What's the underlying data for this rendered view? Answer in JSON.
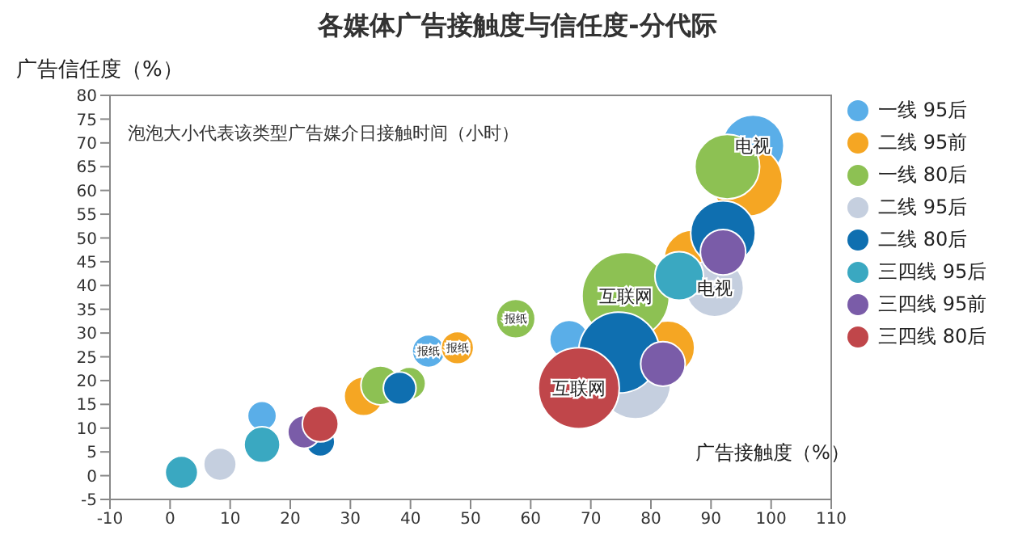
{
  "chart_data": {
    "type": "bubble",
    "title": "各媒体广告接触度与信任度-分代际",
    "xlabel": "广告接触度（%）",
    "ylabel": "广告信任度（%）",
    "xlim": [
      -10,
      110
    ],
    "xticks": [
      -10,
      0,
      10,
      20,
      30,
      40,
      50,
      60,
      70,
      80,
      90,
      100,
      110
    ],
    "ylim": [
      -5,
      80
    ],
    "yticks": [
      -5,
      0,
      5,
      10,
      15,
      20,
      25,
      30,
      35,
      40,
      45,
      50,
      55,
      60,
      65,
      70,
      75,
      80
    ],
    "legend": "right",
    "series": [
      {
        "name": "一线 95后",
        "color": "#5aaee8",
        "x": [
          97,
          66.4,
          43,
          15.3
        ],
        "values": [
          69.4,
          28.6,
          26.2,
          12.6
        ],
        "sizes": [
          0.5,
          0.2,
          0.14,
          0.11
        ]
      },
      {
        "name": "二线 95前",
        "color": "#f5a623",
        "x": [
          96,
          87,
          82.8,
          47.8,
          32.2
        ],
        "values": [
          62,
          45.6,
          26.9,
          26.9,
          16.7
        ],
        "sizes": [
          0.66,
          0.44,
          0.38,
          0.14,
          0.2
        ]
      },
      {
        "name": "一线 80后",
        "color": "#8dc153",
        "x": [
          92.7,
          75.8,
          57.5,
          35,
          39.8
        ],
        "values": [
          65,
          37.8,
          33,
          19,
          19.4
        ],
        "sizes": [
          0.55,
          1,
          0.2,
          0.2,
          0.14
        ]
      },
      {
        "name": "二线 95后",
        "color": "#c5cfdf",
        "x": [
          90.6,
          77.4,
          8.3
        ],
        "values": [
          39.5,
          19.4,
          2.4
        ],
        "sizes": [
          0.44,
          0.66,
          0.14
        ]
      },
      {
        "name": "二线 80后",
        "color": "#0f6fb0",
        "x": [
          92,
          74.7,
          38.2,
          25
        ],
        "values": [
          51,
          25.9,
          18.4,
          7.1
        ],
        "sizes": [
          0.55,
          0.86,
          0.14,
          0.11
        ]
      },
      {
        "name": "三四线 95后",
        "color": "#3aa8c1",
        "x": [
          84.7,
          1.9,
          15.3
        ],
        "values": [
          42,
          0.7,
          6.5
        ],
        "sizes": [
          0.31,
          0.14,
          0.17
        ]
      },
      {
        "name": "三四线 95前",
        "color": "#7a5ca8",
        "x": [
          92,
          82,
          22.3
        ],
        "values": [
          47,
          23.5,
          9.2
        ],
        "sizes": [
          0.27,
          0.26,
          0.14
        ]
      },
      {
        "name": "三四线 80后",
        "color": "#c0464a",
        "x": [
          68,
          25
        ],
        "values": [
          18.4,
          10.9
        ],
        "sizes": [
          0.86,
          0.17
        ]
      }
    ],
    "annotations": [
      "泡泡大小代表该类型广告媒介日接触时间（小时）",
      {
        "text": "电视",
        "x": 97,
        "y": 69.4
      },
      {
        "text": "电视",
        "x": 90.6,
        "y": 39.5
      },
      {
        "text": "互联网",
        "x": 75.8,
        "y": 37.8
      },
      {
        "text": "互联网",
        "x": 68,
        "y": 18.4
      },
      {
        "text": "报纸",
        "x": 57.5,
        "y": 33
      },
      {
        "text": "报纸",
        "x": 47.8,
        "y": 26.9
      },
      {
        "text": "报纸",
        "x": 43,
        "y": 26.2
      }
    ]
  }
}
